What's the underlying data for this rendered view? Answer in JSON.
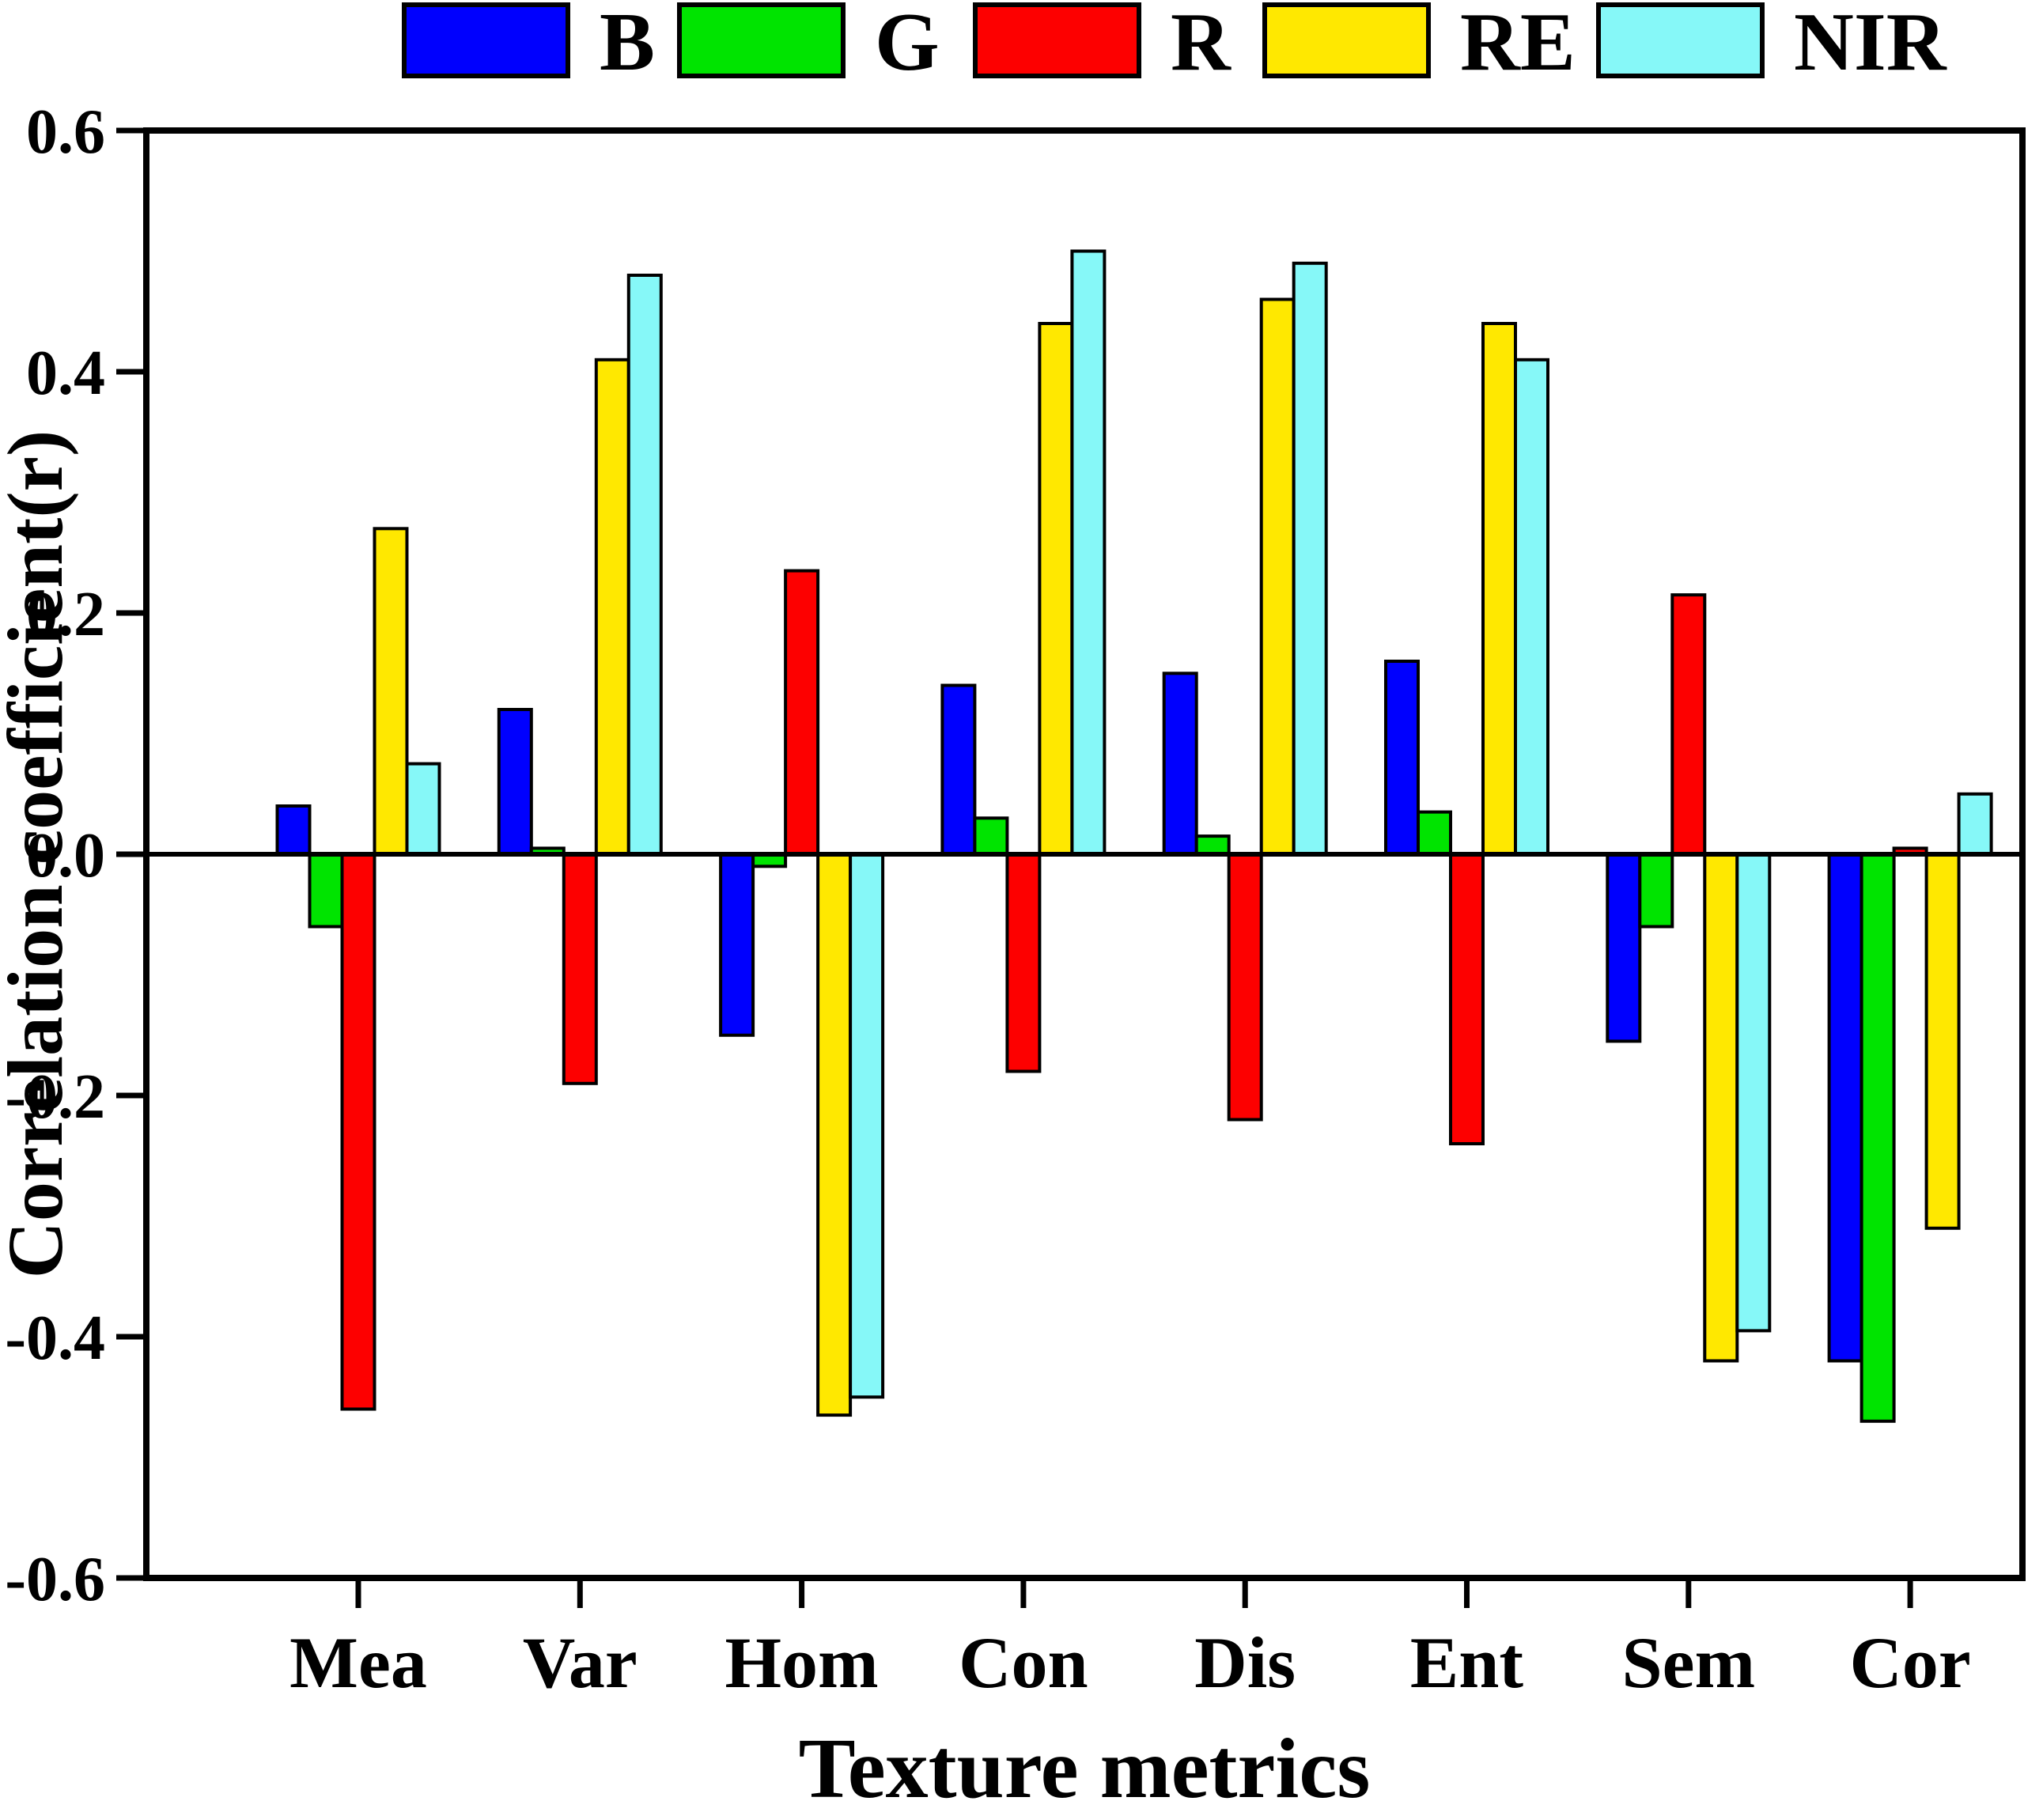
{
  "figure": {
    "background": "#ffffff",
    "frame_color": "#000000"
  },
  "chart_data": {
    "type": "bar",
    "title": "",
    "xlabel": "Texture metrics",
    "ylabel": "Correlation coefficient(r)",
    "categories": [
      "Mea",
      "Var",
      "Hom",
      "Con",
      "Dis",
      "Ent",
      "Sem",
      "Cor"
    ],
    "series": [
      {
        "name": "B",
        "color": "#0000fe",
        "values": [
          0.04,
          0.12,
          -0.15,
          0.14,
          0.15,
          0.16,
          -0.155,
          -0.42
        ]
      },
      {
        "name": "G",
        "color": "#00e400",
        "values": [
          -0.06,
          0.005,
          -0.01,
          0.03,
          0.015,
          0.035,
          -0.06,
          -0.47
        ]
      },
      {
        "name": "R",
        "color": "#fd0000",
        "values": [
          -0.46,
          -0.19,
          0.235,
          -0.18,
          -0.22,
          -0.24,
          0.215,
          0.005
        ]
      },
      {
        "name": "RE",
        "color": "#ffe800",
        "values": [
          0.27,
          0.41,
          -0.465,
          0.44,
          0.46,
          0.44,
          -0.42,
          -0.31
        ]
      },
      {
        "name": "NIR",
        "color": "#86f8f8",
        "values": [
          0.075,
          0.48,
          -0.45,
          0.5,
          0.49,
          0.41,
          -0.395,
          0.05
        ]
      }
    ],
    "ylim": [
      -0.6,
      0.6
    ],
    "ytick_step": 0.2,
    "ytick_labels": [
      "0.6",
      "0.4",
      "0.2",
      "0.0",
      "-0.2",
      "-0.4",
      "-0.6"
    ],
    "grid": false,
    "legend_position": "top",
    "bar_edge_color": "#000000",
    "zero_line": true
  }
}
